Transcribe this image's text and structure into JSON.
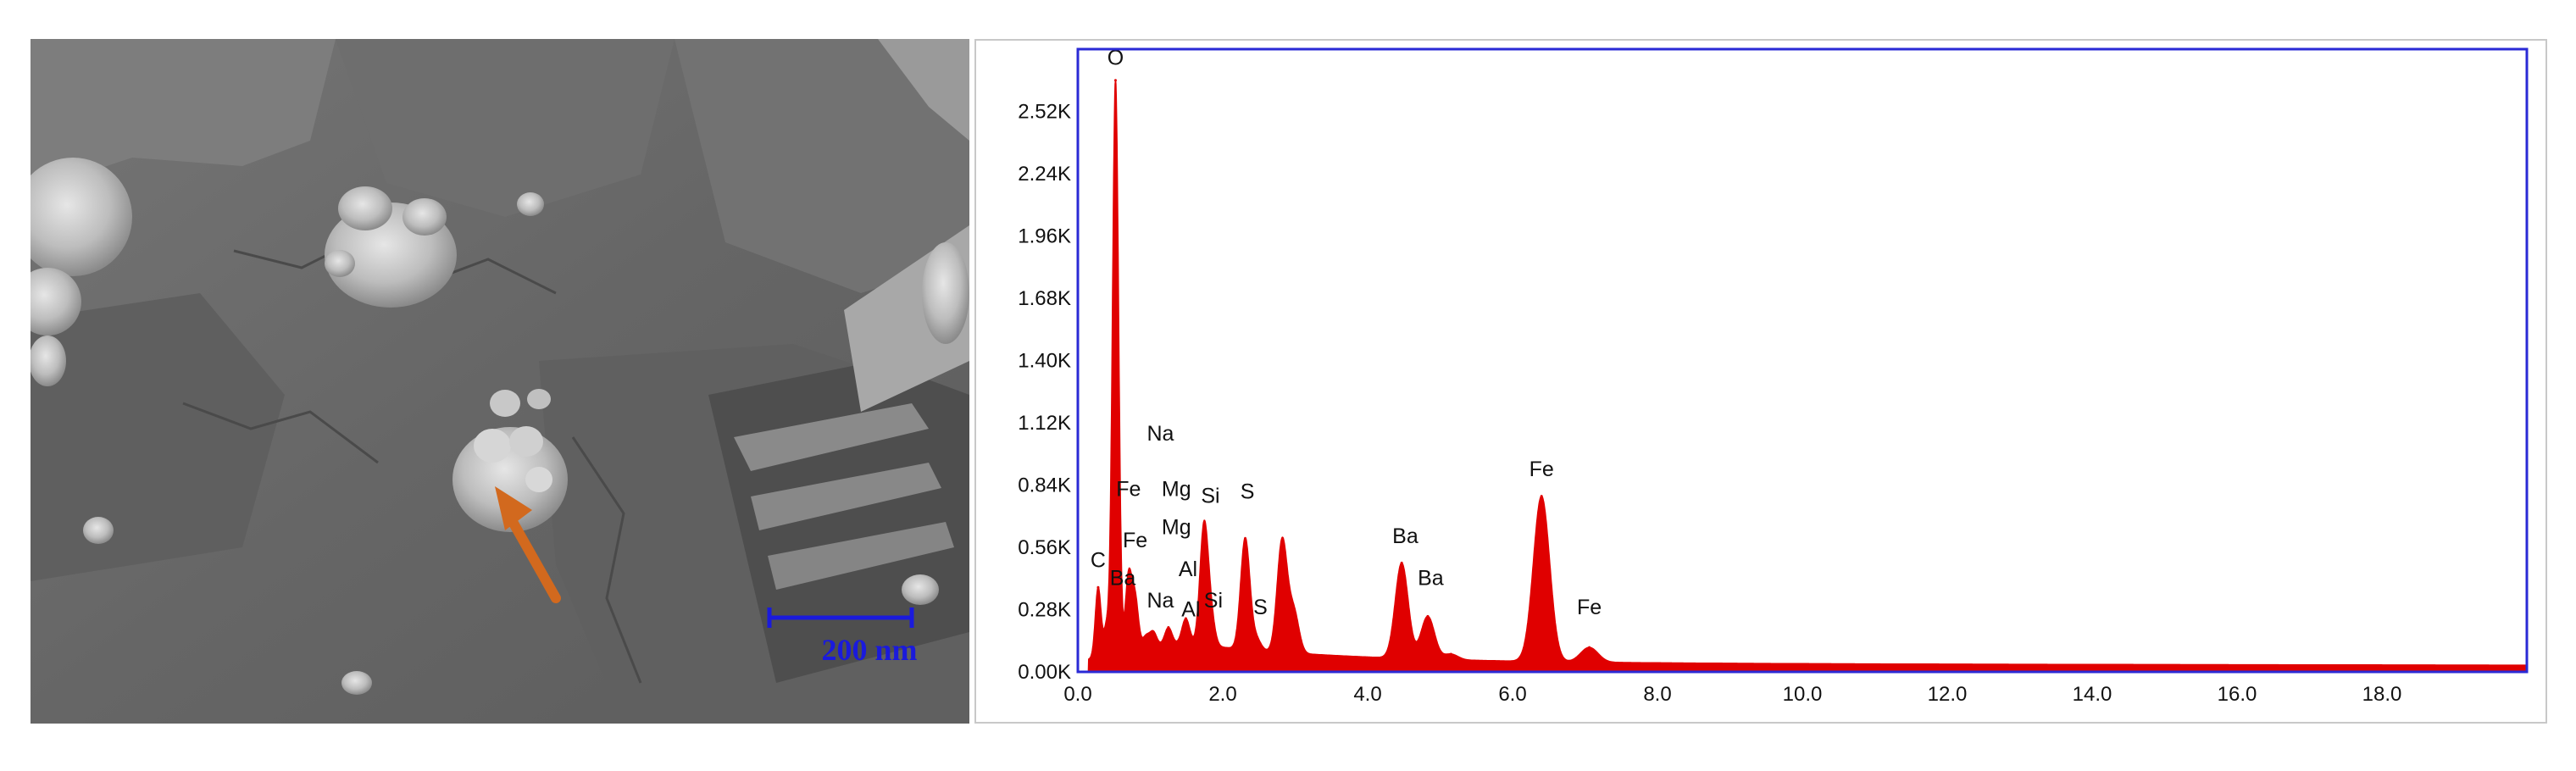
{
  "sem": {
    "scale_bar_label": "200 nm",
    "scale_bar_color": "#1a1adc",
    "arrow_color": "#d2691e"
  },
  "chart_data": {
    "type": "area",
    "title": "",
    "xlabel": "",
    "ylabel": "",
    "xlim": [
      0,
      20
    ],
    "ylim": [
      0,
      2800
    ],
    "grid": false,
    "line_color": "#e00000",
    "frame_color": "#2a2ad6",
    "x_ticks": [
      "0.0",
      "2.0",
      "4.0",
      "6.0",
      "8.0",
      "10.0",
      "12.0",
      "14.0",
      "16.0",
      "18.0"
    ],
    "y_ticks": [
      "0.00K",
      "0.28K",
      "0.56K",
      "0.84K",
      "1.12K",
      "1.40K",
      "1.68K",
      "1.96K",
      "2.24K",
      "2.52K"
    ],
    "peaks": [
      {
        "x": 0.28,
        "y": 380
      },
      {
        "x": 0.4,
        "y": 210
      },
      {
        "x": 0.52,
        "y": 2660
      },
      {
        "x": 0.7,
        "y": 430
      },
      {
        "x": 0.79,
        "y": 330
      },
      {
        "x": 0.94,
        "y": 160
      },
      {
        "x": 1.04,
        "y": 180
      },
      {
        "x": 1.25,
        "y": 200
      },
      {
        "x": 1.49,
        "y": 240
      },
      {
        "x": 1.74,
        "y": 640
      },
      {
        "x": 1.83,
        "y": 250
      },
      {
        "x": 2.31,
        "y": 600
      },
      {
        "x": 2.46,
        "y": 150
      },
      {
        "x": 2.82,
        "y": 590
      },
      {
        "x": 2.98,
        "y": 270
      },
      {
        "x": 4.47,
        "y": 490
      },
      {
        "x": 4.83,
        "y": 250
      },
      {
        "x": 5.15,
        "y": 80
      },
      {
        "x": 6.4,
        "y": 790
      },
      {
        "x": 7.06,
        "y": 110
      }
    ],
    "annotations": [
      {
        "label": "O",
        "x": 0.52,
        "y": 2730
      },
      {
        "label": "C",
        "x": 0.28,
        "y": 470
      },
      {
        "label": "Ba",
        "x": 0.62,
        "y": 390
      },
      {
        "label": "Fe",
        "x": 0.7,
        "y": 790
      },
      {
        "label": "Fe",
        "x": 0.79,
        "y": 560
      },
      {
        "label": "Na",
        "x": 1.14,
        "y": 1040
      },
      {
        "label": "Na",
        "x": 1.14,
        "y": 290
      },
      {
        "label": "Mg",
        "x": 1.36,
        "y": 790
      },
      {
        "label": "Mg",
        "x": 1.36,
        "y": 620
      },
      {
        "label": "Al",
        "x": 1.52,
        "y": 430
      },
      {
        "label": "Al",
        "x": 1.56,
        "y": 250
      },
      {
        "label": "Si",
        "x": 1.83,
        "y": 760
      },
      {
        "label": "Si",
        "x": 1.87,
        "y": 290
      },
      {
        "label": "S",
        "x": 2.34,
        "y": 780
      },
      {
        "label": "S",
        "x": 2.52,
        "y": 260
      },
      {
        "label": "Ba",
        "x": 4.52,
        "y": 580
      },
      {
        "label": "Ba",
        "x": 4.87,
        "y": 390
      },
      {
        "label": "Fe",
        "x": 6.4,
        "y": 880
      },
      {
        "label": "Fe",
        "x": 7.06,
        "y": 260
      }
    ]
  }
}
